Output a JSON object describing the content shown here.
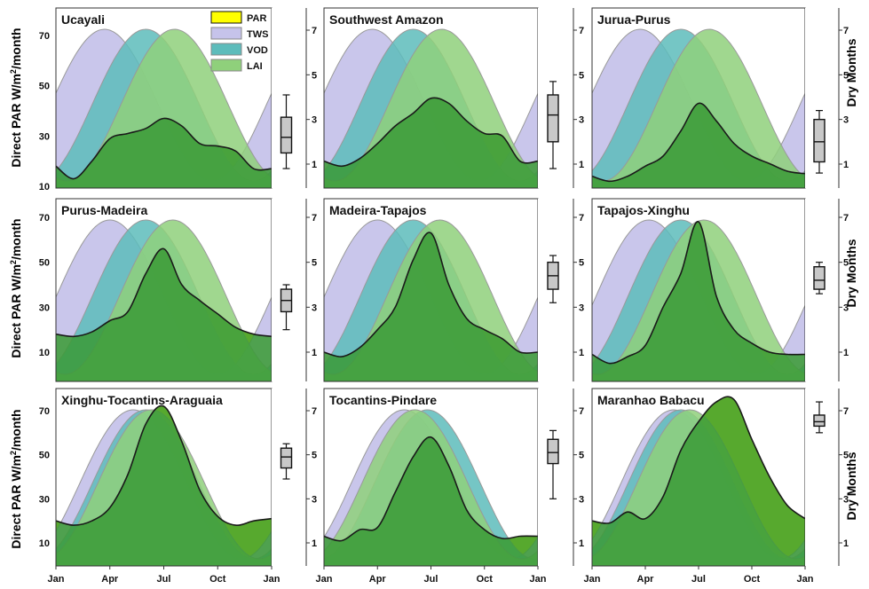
{
  "figure": {
    "ylabel_left": "Direct PAR W/m²/month",
    "ylabel_left_main": "Direct PAR W/m",
    "ylabel_left_sup": "2",
    "ylabel_left_tail": "/month",
    "ylabel_right": "Dry Months",
    "legend": [
      "PAR",
      "TWS",
      "VOD",
      "LAI"
    ],
    "colors": {
      "PAR": "#ffff00",
      "TWS": "#c6c3ea",
      "VOD": "#5dbcbb",
      "LAI": "#8fd07b",
      "ground": "#3a9a36",
      "box": "#c8c8c8"
    },
    "y_ticks": [
      10,
      30,
      50,
      70
    ],
    "dry_ticks": [
      1,
      3,
      5,
      7
    ],
    "x_ticks": [
      "Jan",
      "Apr",
      "Jul",
      "Oct",
      "Jan"
    ]
  },
  "chart_data": [
    {
      "type": "area",
      "title": "Ucayali",
      "months": [
        1,
        2,
        3,
        4,
        5,
        6,
        7,
        8,
        9,
        10,
        11,
        12,
        13
      ],
      "ylim": [
        10,
        75
      ],
      "PAR": [
        18,
        13,
        20,
        29,
        31,
        33,
        37,
        34,
        27,
        26,
        24,
        17,
        17
      ],
      "TWS_peak_month": 3.7,
      "VOD_peak_month": 6.0,
      "LAI_peak_month": 7.6,
      "dry_months_box": {
        "min": 0.8,
        "q1": 1.5,
        "median": 2.2,
        "q3": 3.1,
        "max": 4.1
      }
    },
    {
      "type": "area",
      "title": "Southwest Amazon",
      "months": [
        1,
        2,
        3,
        4,
        5,
        6,
        7,
        8,
        9,
        10,
        11,
        12,
        13
      ],
      "ylim": [
        10,
        75
      ],
      "PAR": [
        20,
        18,
        21,
        27,
        34,
        39,
        45,
        43,
        36,
        31,
        30,
        20,
        20
      ],
      "TWS_peak_month": 3.7,
      "VOD_peak_month": 6.0,
      "LAI_peak_month": 7.6,
      "dry_months_box": {
        "min": 0.8,
        "q1": 2.0,
        "median": 3.2,
        "q3": 4.1,
        "max": 4.7
      }
    },
    {
      "type": "area",
      "title": "Jurua-Purus",
      "months": [
        1,
        2,
        3,
        4,
        5,
        6,
        7,
        8,
        9,
        10,
        11,
        12,
        13
      ],
      "ylim": [
        10,
        75
      ],
      "PAR": [
        14,
        12,
        14,
        18,
        22,
        32,
        43,
        36,
        27,
        22,
        19,
        16,
        15
      ],
      "TWS_peak_month": 3.7,
      "VOD_peak_month": 6.0,
      "LAI_peak_month": 7.6,
      "dry_months_box": {
        "min": 0.6,
        "q1": 1.1,
        "median": 2.0,
        "q3": 3.0,
        "max": 3.4
      }
    },
    {
      "type": "area",
      "title": "Purus-Madeira",
      "months": [
        1,
        2,
        3,
        4,
        5,
        6,
        7,
        8,
        9,
        10,
        11,
        12,
        13
      ],
      "ylim": [
        10,
        75
      ],
      "PAR": [
        18,
        17,
        19,
        24,
        28,
        45,
        56,
        40,
        33,
        27,
        21,
        18,
        17
      ],
      "TWS_peak_month": 4.0,
      "VOD_peak_month": 6.0,
      "LAI_peak_month": 7.5,
      "dry_months_box": {
        "min": 2.0,
        "q1": 2.8,
        "median": 3.3,
        "q3": 3.8,
        "max": 4.0
      }
    },
    {
      "type": "area",
      "title": "Madeira-Tapajos",
      "months": [
        1,
        2,
        3,
        4,
        5,
        6,
        7,
        8,
        9,
        10,
        11,
        12,
        13
      ],
      "ylim": [
        10,
        75
      ],
      "PAR": [
        10,
        8,
        12,
        20,
        30,
        51,
        63,
        40,
        25,
        20,
        16,
        10,
        10
      ],
      "TWS_peak_month": 4.0,
      "VOD_peak_month": 6.0,
      "LAI_peak_month": 7.5,
      "dry_months_box": {
        "min": 3.2,
        "q1": 3.8,
        "median": 4.4,
        "q3": 5.0,
        "max": 5.3
      }
    },
    {
      "type": "area",
      "title": "Tapajos-Xinghu",
      "months": [
        1,
        2,
        3,
        4,
        5,
        6,
        7,
        8,
        9,
        10,
        11,
        12,
        13
      ],
      "ylim": [
        10,
        75
      ],
      "PAR": [
        9,
        5,
        8,
        13,
        30,
        45,
        68,
        35,
        20,
        14,
        10,
        9,
        9
      ],
      "TWS_peak_month": 4.2,
      "VOD_peak_month": 6.0,
      "LAI_peak_month": 7.3,
      "dry_months_box": {
        "min": 3.6,
        "q1": 3.8,
        "median": 4.2,
        "q3": 4.8,
        "max": 5.0
      }
    },
    {
      "type": "area",
      "title": "Xinghu-Tocantins-Araguaia",
      "months": [
        1,
        2,
        3,
        4,
        5,
        6,
        7,
        8,
        9,
        10,
        11,
        12,
        13
      ],
      "ylim": [
        0,
        75
      ],
      "PAR": [
        20,
        18,
        20,
        26,
        41,
        64,
        72,
        56,
        34,
        22,
        18,
        20,
        21
      ],
      "TWS_peak_month": 5.3,
      "VOD_peak_month": 6.0,
      "LAI_peak_month": 6.3,
      "dry_months_box": {
        "min": 3.9,
        "q1": 4.4,
        "median": 4.9,
        "q3": 5.3,
        "max": 5.5
      }
    },
    {
      "type": "area",
      "title": "Tocantins-Pindare",
      "months": [
        1,
        2,
        3,
        4,
        5,
        6,
        7,
        8,
        9,
        10,
        11,
        12,
        13
      ],
      "ylim": [
        0,
        75
      ],
      "PAR": [
        13,
        11,
        16,
        17,
        33,
        49,
        58,
        45,
        25,
        16,
        12,
        13,
        13
      ],
      "TWS_peak_month": 5.5,
      "VOD_peak_month": 6.8,
      "LAI_peak_month": 6.1,
      "dry_months_box": {
        "min": 3.0,
        "q1": 4.6,
        "median": 5.1,
        "q3": 5.7,
        "max": 6.1
      }
    },
    {
      "type": "area",
      "title": "Maranhao Babacu",
      "months": [
        1,
        2,
        3,
        4,
        5,
        6,
        7,
        8,
        9,
        10,
        11,
        12,
        13
      ],
      "ylim": [
        0,
        75
      ],
      "PAR": [
        20,
        19,
        24,
        21,
        31,
        52,
        65,
        74,
        75,
        57,
        40,
        27,
        21
      ],
      "TWS_peak_month": 5.6,
      "VOD_peak_month": 6.0,
      "LAI_peak_month": 6.5,
      "dry_months_box": {
        "min": 6.0,
        "q1": 6.3,
        "median": 6.5,
        "q3": 6.8,
        "max": 7.4
      }
    }
  ]
}
